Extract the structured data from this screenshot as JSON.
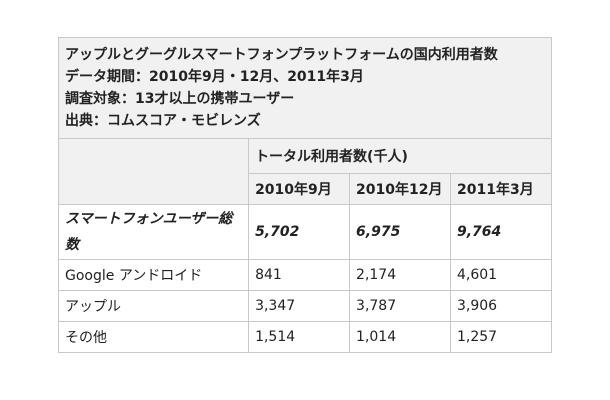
{
  "header": {
    "title": "アップルとグーグルスマートフォンプラットフォームの国内利用者数",
    "period": "データ期間：2010年9月・12月、2011年3月",
    "subjects": "調査対象：13才以上の携帯ユーザー",
    "source": "出典：コムスコア・モビレンズ"
  },
  "table": {
    "group_header": "トータル利用者数(千人)",
    "columns": [
      "2010年9月",
      "2010年12月",
      "2011年3月"
    ],
    "rows": [
      {
        "label": "スマートフォンユーザー総数",
        "values": [
          "5,702",
          "6,975",
          "9,764"
        ]
      },
      {
        "label": "Google アンドロイド",
        "values": [
          "841",
          "2,174",
          "4,601"
        ]
      },
      {
        "label": "アップル",
        "values": [
          "3,347",
          "3,787",
          "3,906"
        ]
      },
      {
        "label": "その他",
        "values": [
          "1,514",
          "1,014",
          "1,257"
        ]
      }
    ]
  }
}
